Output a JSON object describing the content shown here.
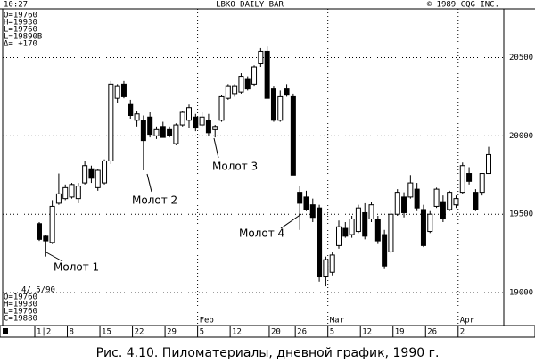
{
  "chart_data": {
    "type": "candlestick",
    "header_left": "10:27",
    "title": "LBKO DAILY BAR",
    "copyright": "© 1989 CQG INC.",
    "info": [
      "O=19760",
      "H=19930",
      "L=19760",
      "L=19890B",
      "Δ= +170"
    ],
    "last_date": "4/ 5/90",
    "last_bar": [
      "O=19760",
      "H=19930",
      "L=19760",
      "C=19880"
    ],
    "caption": "Рис. 4.10. Пиломатериалы, дневной график, 1990 г.",
    "categories": [
      "1|2",
      null,
      null,
      null,
      null,
      "8",
      null,
      null,
      null,
      null,
      "15",
      null,
      null,
      null,
      null,
      "22",
      null,
      null,
      null,
      null,
      "29",
      null,
      null,
      null,
      null,
      "5",
      null,
      null,
      null,
      null,
      "12",
      null,
      null,
      null,
      null,
      null,
      "20",
      null,
      null,
      null,
      "26",
      null,
      null,
      null,
      null,
      "5",
      null,
      null,
      null,
      null,
      "12",
      null,
      null,
      null,
      null,
      "19",
      null,
      null,
      null,
      null,
      "26",
      null,
      null,
      null,
      null,
      "2",
      null,
      null,
      null,
      null
    ],
    "months": [
      null,
      null,
      null,
      null,
      null,
      null,
      null,
      null,
      null,
      null,
      null,
      null,
      null,
      null,
      null,
      null,
      null,
      null,
      null,
      null,
      null,
      null,
      null,
      null,
      null,
      "Feb",
      null,
      null,
      null,
      null,
      null,
      null,
      null,
      null,
      null,
      null,
      null,
      null,
      null,
      null,
      null,
      null,
      null,
      null,
      null,
      "Mar",
      null,
      null,
      null,
      null,
      null,
      null,
      null,
      null,
      null,
      null,
      null,
      null,
      null,
      null,
      null,
      null,
      null,
      null,
      null,
      "Apr",
      null,
      null,
      null,
      null
    ],
    "open": [
      19440,
      19360,
      19320,
      19570,
      19600,
      19610,
      19600,
      19700,
      19790,
      19670,
      19700,
      19840,
      20240,
      20330,
      20200,
      20100,
      20100,
      20120,
      20000,
      20060,
      20040,
      19950,
      20070,
      20100,
      20120,
      20070,
      20100,
      20040,
      20100,
      20240,
      20270,
      20280,
      20360,
      20330,
      20460,
      20540,
      20300,
      20100,
      20300,
      20250,
      19640,
      19610,
      19560,
      19540,
      19100,
      19130,
      19300,
      19410,
      19370,
      19390,
      19510,
      19470,
      19470,
      19370,
      19260,
      19500,
      19610,
      19610,
      19660,
      19530,
      19390,
      19550,
      19580,
      19530,
      19560,
      19640,
      19760,
      19640,
      19640,
      19760
    ],
    "high": [
      19450,
      19370,
      19590,
      19760,
      19690,
      19700,
      19700,
      19840,
      19810,
      19790,
      19850,
      20350,
      20330,
      20350,
      20230,
      20160,
      20130,
      20150,
      20060,
      20090,
      20060,
      20080,
      20160,
      20200,
      20140,
      20150,
      20140,
      20070,
      20260,
      20330,
      20330,
      20400,
      20380,
      20450,
      20560,
      20570,
      20320,
      20290,
      20330,
      20270,
      19680,
      19650,
      19600,
      19560,
      19230,
      19260,
      19460,
      19450,
      19490,
      19560,
      19570,
      19580,
      19490,
      19400,
      19530,
      19660,
      19640,
      19750,
      19700,
      19560,
      19520,
      19670,
      19620,
      19650,
      19620,
      19830,
      19800,
      19660,
      19760,
      19930
    ],
    "low": [
      19330,
      19230,
      19310,
      19560,
      19590,
      19600,
      19570,
      19690,
      19700,
      19650,
      19690,
      19820,
      20210,
      20240,
      20110,
      20060,
      19780,
      19990,
      19980,
      19990,
      19990,
      19940,
      20060,
      20050,
      20030,
      20060,
      20000,
      19990,
      20090,
      20230,
      20250,
      20270,
      20290,
      20320,
      20440,
      20250,
      20090,
      20090,
      20250,
      19750,
      19400,
      19520,
      19450,
      19070,
      19040,
      19110,
      19280,
      19350,
      19350,
      19380,
      19340,
      19450,
      19310,
      19150,
      19250,
      19490,
      19480,
      19600,
      19520,
      19290,
      19380,
      19540,
      19450,
      19520,
      19540,
      19630,
      19690,
      19520,
      19620,
      19760
    ],
    "close": [
      19340,
      19330,
      19550,
      19630,
      19670,
      19690,
      19680,
      19810,
      19730,
      19780,
      19840,
      20330,
      20320,
      20250,
      20130,
      20140,
      19970,
      20010,
      20040,
      19990,
      20000,
      20070,
      20150,
      20180,
      20050,
      20120,
      20020,
      20060,
      20250,
      20320,
      20320,
      20380,
      20300,
      20440,
      20540,
      20240,
      20100,
      20250,
      20260,
      19750,
      19570,
      19530,
      19480,
      19100,
      19210,
      19240,
      19420,
      19360,
      19470,
      19540,
      19360,
      19560,
      19330,
      19170,
      19500,
      19640,
      19510,
      19700,
      19540,
      19300,
      19500,
      19660,
      19470,
      19640,
      19600,
      19810,
      19710,
      19530,
      19760,
      19880
    ],
    "annotations": [
      "Молот 1",
      "Молот 2",
      "Молот 3",
      "Молот 4"
    ],
    "ylim": [
      18790,
      20810
    ],
    "yticks": [
      19000,
      19500,
      20000,
      20500
    ],
    "grid": true
  }
}
